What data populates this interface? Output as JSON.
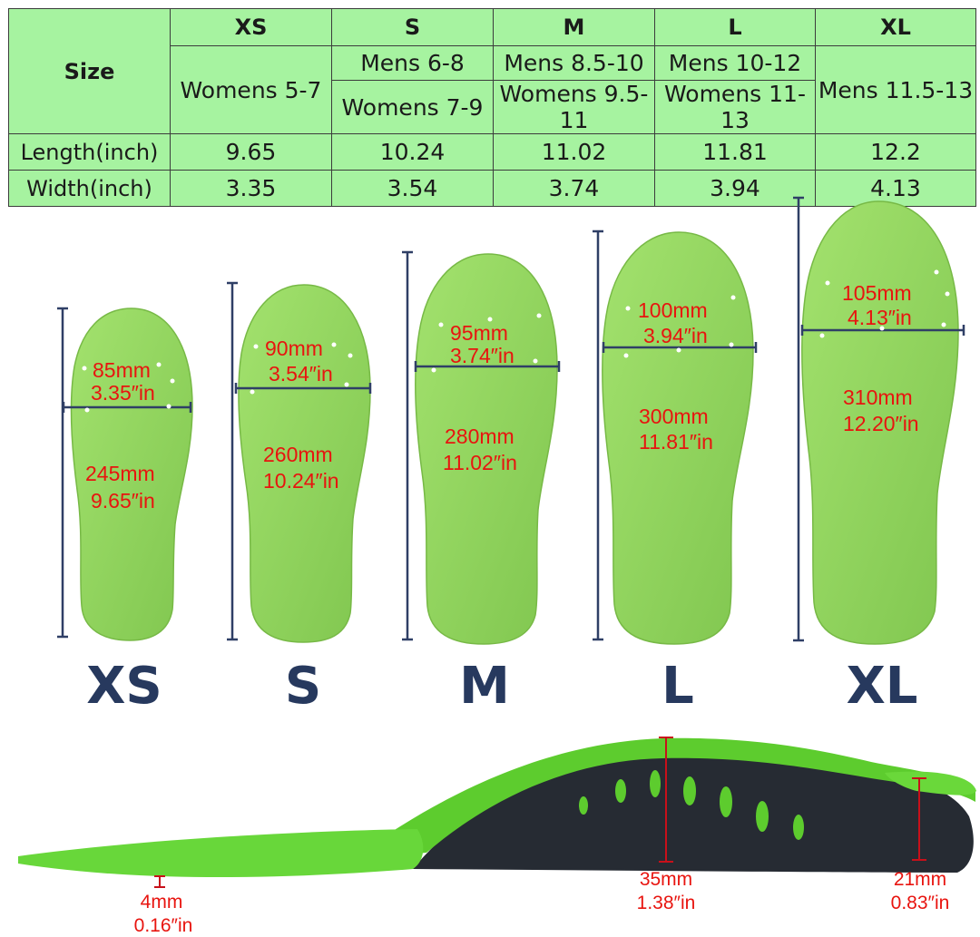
{
  "table": {
    "size_header": "Size",
    "length_label": "Length(inch)",
    "width_label": "Width(inch)",
    "columns": [
      {
        "size": "XS",
        "fit_top": "Womens 5-7",
        "fit_bottom": "",
        "length": "9.65",
        "width": "3.35"
      },
      {
        "size": "S",
        "fit_top": "Mens 6-8",
        "fit_bottom": "Womens 7-9",
        "length": "10.24",
        "width": "3.54"
      },
      {
        "size": "M",
        "fit_top": "Mens 8.5-10",
        "fit_bottom": "Womens 9.5-11",
        "length": "11.02",
        "width": "3.74"
      },
      {
        "size": "L",
        "fit_top": "Mens 10-12",
        "fit_bottom": "Womens 11-13",
        "length": "11.81",
        "width": "3.94"
      },
      {
        "size": "XL",
        "fit_top": "Mens 11.5-13",
        "fit_bottom": "",
        "length": "12.2",
        "width": "4.13"
      }
    ]
  },
  "insoles": [
    {
      "size": "XS",
      "width_mm": "85mm",
      "width_in": "3.35″in",
      "length_mm": "245mm",
      "length_in": "9.65″in"
    },
    {
      "size": "S",
      "width_mm": "90mm",
      "width_in": "3.54″in",
      "length_mm": "260mm",
      "length_in": "10.24″in"
    },
    {
      "size": "M",
      "width_mm": "95mm",
      "width_in": "3.74″in",
      "length_mm": "280mm",
      "length_in": "11.02″in"
    },
    {
      "size": "L",
      "width_mm": "100mm",
      "width_in": "3.94″in",
      "length_mm": "300mm",
      "length_in": "11.81″in"
    },
    {
      "size": "XL",
      "width_mm": "105mm",
      "width_in": "4.13″in",
      "length_mm": "310mm",
      "length_in": "12.20″in"
    }
  ],
  "profile": {
    "toe_mm": "4mm",
    "toe_in": "0.16″in",
    "arch_mm": "35mm",
    "arch_in": "1.38″in",
    "heel_mm": "21mm",
    "heel_in": "0.83″in"
  },
  "colors": {
    "table_bg": "#a6f3a0",
    "insole_green": "#8fd35c",
    "measure_red": "#e8140f",
    "line_navy": "#2f3f66",
    "base_dark": "#262b33"
  }
}
